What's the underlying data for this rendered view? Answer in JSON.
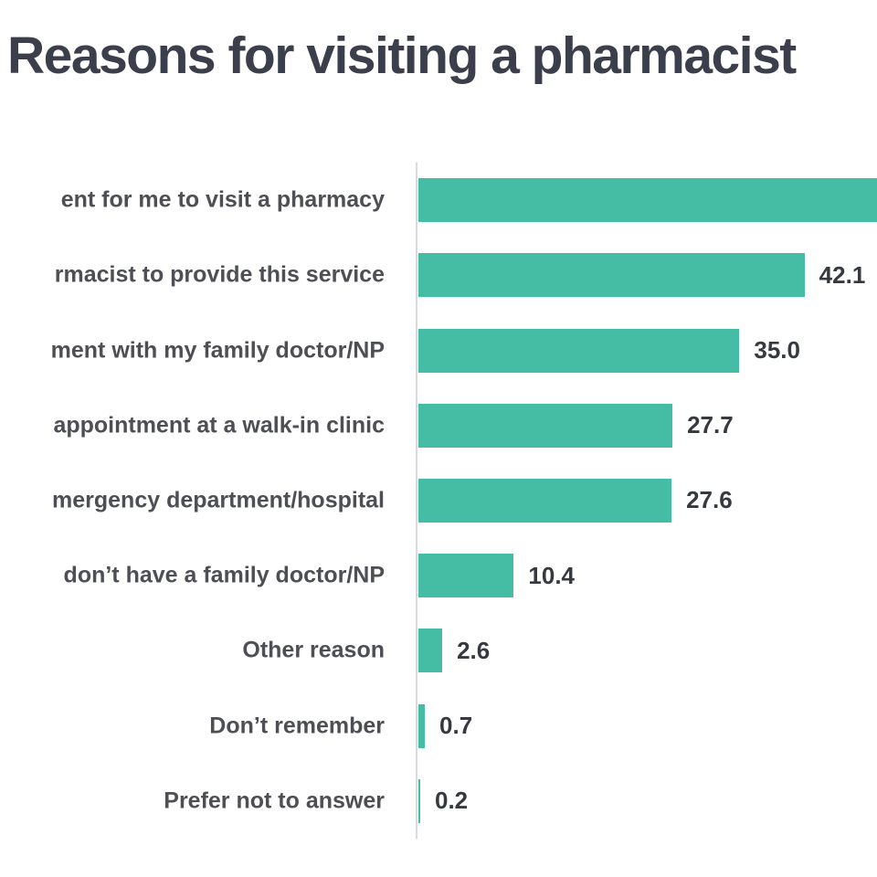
{
  "title": "Reasons for visiting a pharmacist",
  "colors": {
    "bar": "#45bca4",
    "title_text": "#3b3f4c",
    "category_text": "#4d4f55",
    "value_text": "#363a40",
    "axis_line": "#d9d9d9",
    "background": "#ffffff"
  },
  "chart_data": {
    "type": "bar",
    "orientation": "horizontal",
    "title": "Reasons for visiting a pharmacist",
    "xlabel": "",
    "ylabel": "",
    "xlim": [
      0,
      50
    ],
    "grid": false,
    "legend": false,
    "value_labels_shown": true,
    "bars": [
      {
        "label": "ent for me to visit a pharmacy",
        "label_truncated_left": true,
        "value": null,
        "value_label": "",
        "bar_clipped_right": true
      },
      {
        "label": "rmacist to provide this service",
        "label_truncated_left": true,
        "value": 42.1,
        "value_label": "42.1",
        "bar_clipped_right": false
      },
      {
        "label": "ment with my family doctor/NP",
        "label_truncated_left": true,
        "value": 35.0,
        "value_label": "35.0",
        "bar_clipped_right": false
      },
      {
        "label": "appointment at a walk-in clinic",
        "label_truncated_left": true,
        "value": 27.7,
        "value_label": "27.7",
        "bar_clipped_right": false
      },
      {
        "label": "mergency department/hospital",
        "label_truncated_left": true,
        "value": 27.6,
        "value_label": "27.6",
        "bar_clipped_right": false
      },
      {
        "label": "don’t have a family doctor/NP",
        "label_truncated_left": true,
        "value": 10.4,
        "value_label": "10.4",
        "bar_clipped_right": false
      },
      {
        "label": "Other reason",
        "label_truncated_left": false,
        "value": 2.6,
        "value_label": "2.6",
        "bar_clipped_right": false
      },
      {
        "label": "Don’t remember",
        "label_truncated_left": false,
        "value": 0.7,
        "value_label": "0.7",
        "bar_clipped_right": false
      },
      {
        "label": "Prefer not to answer",
        "label_truncated_left": false,
        "value": 0.2,
        "value_label": "0.2",
        "bar_clipped_right": false
      }
    ]
  }
}
